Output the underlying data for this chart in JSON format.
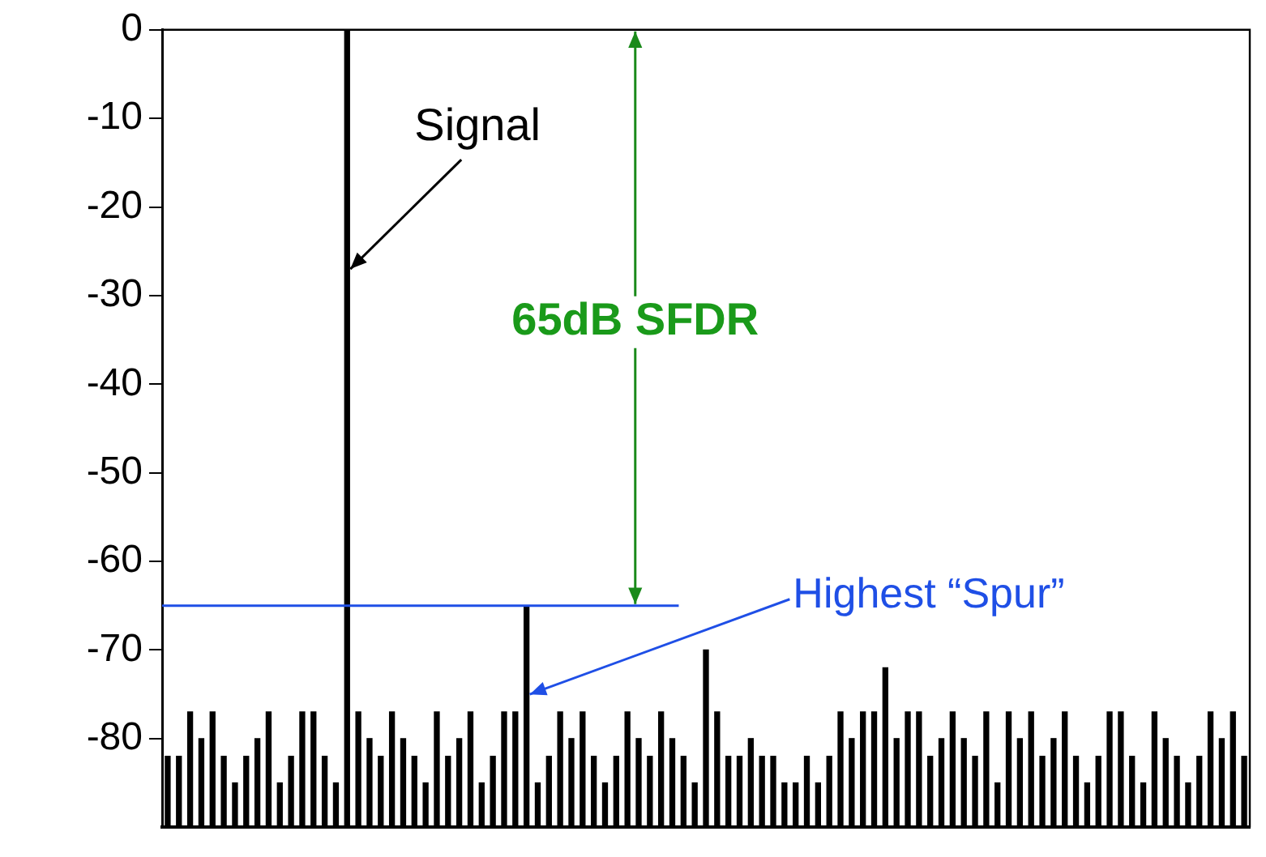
{
  "chart_data": {
    "type": "bar",
    "categories": [
      null,
      null,
      null,
      null,
      null,
      null,
      null,
      null,
      null,
      null,
      null,
      null,
      null,
      null,
      null,
      null,
      null,
      null,
      null,
      null,
      null,
      null,
      null,
      null,
      null,
      null,
      null,
      null,
      null,
      null,
      null,
      null,
      null,
      null,
      null,
      null,
      null,
      null,
      null,
      null,
      null,
      null,
      null,
      null,
      null,
      null,
      null,
      null,
      null,
      null,
      null,
      null,
      null,
      null,
      null,
      null,
      null,
      null,
      null,
      null,
      null,
      null,
      null,
      null,
      null,
      null,
      null,
      null,
      null,
      null,
      null,
      null,
      null,
      null,
      null,
      null,
      null,
      null,
      null,
      null,
      null,
      null,
      null,
      null,
      null,
      null,
      null,
      null,
      null,
      null,
      null,
      null,
      null,
      null,
      null,
      null,
      null
    ],
    "values": [
      8,
      8,
      13,
      10,
      13,
      8,
      5,
      8,
      10,
      13,
      5,
      8,
      13,
      13,
      8,
      5,
      90,
      13,
      10,
      8,
      13,
      10,
      8,
      5,
      13,
      8,
      10,
      13,
      5,
      8,
      13,
      13,
      25,
      5,
      8,
      13,
      10,
      13,
      8,
      5,
      8,
      13,
      10,
      8,
      13,
      10,
      8,
      5,
      20,
      13,
      8,
      8,
      10,
      8,
      8,
      5,
      5,
      8,
      5,
      8,
      13,
      10,
      13,
      13,
      18,
      10,
      13,
      13,
      8,
      10,
      13,
      10,
      8,
      13,
      5,
      13,
      10,
      13,
      8,
      10,
      13,
      8,
      5,
      8,
      13,
      13,
      8,
      5,
      13,
      10,
      8,
      5,
      8,
      13,
      10,
      13,
      8
    ],
    "base": [
      -90,
      -90,
      -90,
      -90,
      -90,
      -90,
      -90,
      -90,
      -90,
      -90,
      -90,
      -90,
      -90,
      -90,
      -90,
      -90,
      -90,
      -90,
      -90,
      -90,
      -90,
      -90,
      -90,
      -90,
      -90,
      -90,
      -90,
      -90,
      -90,
      -90,
      -90,
      -90,
      -90,
      -90,
      -90,
      -90,
      -90,
      -90,
      -90,
      -90,
      -90,
      -90,
      -90,
      -90,
      -90,
      -90,
      -90,
      -90,
      -90,
      -90,
      -90,
      -90,
      -90,
      -90,
      -90,
      -90,
      -90,
      -90,
      -90,
      -90,
      -90,
      -90,
      -90,
      -90,
      -90,
      -90,
      -90,
      -90,
      -90,
      -90,
      -90,
      -90,
      -90,
      -90,
      -90,
      -90,
      -90,
      -90,
      -90,
      -90,
      -90,
      -90,
      -90,
      -90,
      -90,
      -90,
      -90,
      -90,
      -90,
      -90,
      -90,
      -90,
      -90,
      -90,
      -90,
      -90,
      -90
    ],
    "color": "#000000",
    "ylim": [
      -90,
      0
    ],
    "yticks": [
      0,
      -10,
      -20,
      -30,
      -40,
      -50,
      -60,
      -70,
      -80
    ],
    "grid": false,
    "legend": false,
    "tick_labels": "y",
    "ref_lines": [
      {
        "axis": "y",
        "value": -65,
        "label": "Highest “Spur”",
        "color": "#1f4fe6"
      }
    ],
    "annotations": [
      "Signal",
      "65dB SFDR"
    ]
  }
}
